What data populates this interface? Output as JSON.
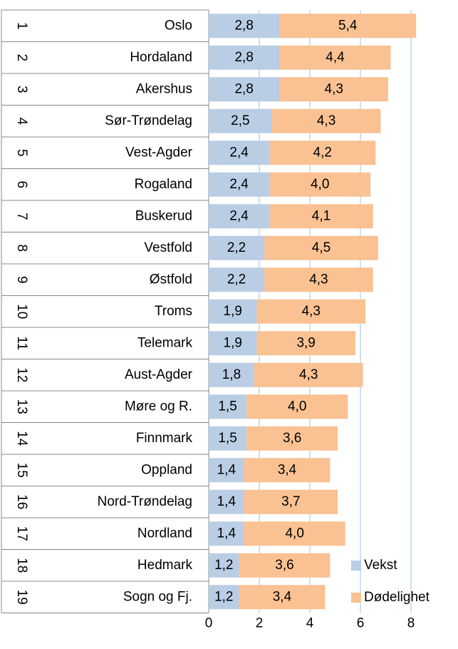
{
  "chart_data": {
    "type": "stacked-bar-horizontal",
    "row_numbers": [
      1,
      2,
      3,
      4,
      5,
      6,
      7,
      8,
      9,
      10,
      11,
      12,
      13,
      14,
      15,
      16,
      17,
      18,
      19
    ],
    "categories": [
      "Oslo",
      "Hordaland",
      "Akershus",
      "Sør-Trøndelag",
      "Vest-Agder",
      "Rogaland",
      "Buskerud",
      "Vestfold",
      "Østfold",
      "Troms",
      "Telemark",
      "Aust-Agder",
      "Møre og R.",
      "Finnmark",
      "Oppland",
      "Nord-Trøndelag",
      "Nordland",
      "Hedmark",
      "Sogn og Fj."
    ],
    "series": [
      {
        "name": "Vekst",
        "color": "#b9cde5",
        "values": [
          2.8,
          2.8,
          2.8,
          2.5,
          2.4,
          2.4,
          2.4,
          2.2,
          2.2,
          1.9,
          1.9,
          1.8,
          1.5,
          1.5,
          1.4,
          1.4,
          1.4,
          1.2,
          1.2
        ],
        "value_labels": [
          "2,8",
          "2,8",
          "2,8",
          "2,5",
          "2,4",
          "2,4",
          "2,4",
          "2,2",
          "2,2",
          "1,9",
          "1,9",
          "1,8",
          "1,5",
          "1,5",
          "1,4",
          "1,4",
          "1,4",
          "1,2",
          "1,2"
        ]
      },
      {
        "name": "Dødelighet",
        "color": "#fac192",
        "values": [
          5.4,
          4.4,
          4.3,
          4.3,
          4.2,
          4.0,
          4.1,
          4.5,
          4.3,
          4.3,
          3.9,
          4.3,
          4.0,
          3.6,
          3.4,
          3.7,
          4.0,
          3.6,
          3.4
        ],
        "value_labels": [
          "5,4",
          "4,4",
          "4,3",
          "4,3",
          "4,2",
          "4,0",
          "4,1",
          "4,5",
          "4,3",
          "4,3",
          "3,9",
          "4,3",
          "4,0",
          "3,6",
          "3,4",
          "3,7",
          "4,0",
          "3,6",
          "3,4"
        ]
      }
    ],
    "xlim": [
      0,
      9
    ],
    "xticks": [
      0,
      2,
      4,
      6,
      8
    ],
    "grid": true,
    "legend": "bottom-right"
  }
}
